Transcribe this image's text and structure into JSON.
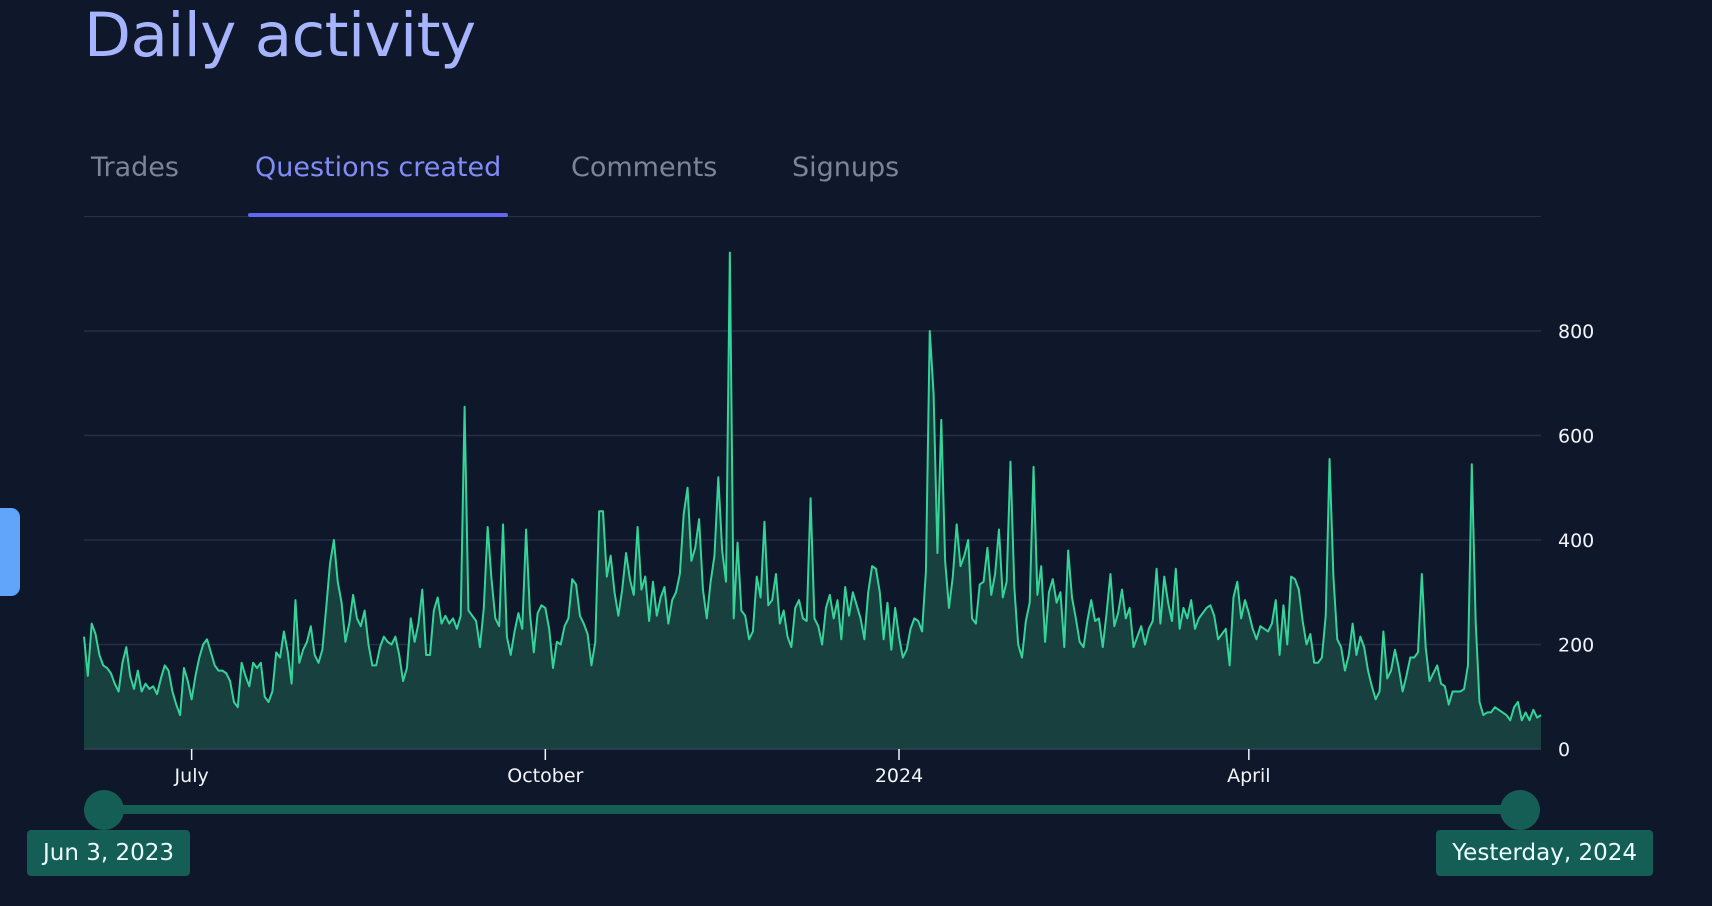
{
  "title": "Daily activity",
  "tabs": [
    {
      "label": "Trades",
      "active": false
    },
    {
      "label": "Questions created",
      "active": true
    },
    {
      "label": "Comments",
      "active": false
    },
    {
      "label": "Signups",
      "active": false
    }
  ],
  "colors": {
    "background": "#0f172a",
    "title": "#a5b4fc",
    "active_tab": "#818cf8",
    "line": "#34d399",
    "area": "#17403f",
    "range": "#155e56"
  },
  "range": {
    "start_label": "Jun 3, 2023",
    "end_label": "Yesterday, 2024",
    "start_fraction": 0,
    "end_fraction": 1
  },
  "chart_data": {
    "type": "area",
    "title": "",
    "xlabel": "",
    "ylabel": "",
    "ylim": [
      0,
      1000
    ],
    "y_ticks": [
      0,
      200,
      400,
      600,
      800
    ],
    "y_axis_position": "right",
    "x_ticks": [
      {
        "date": "2023-07-01",
        "label": "July"
      },
      {
        "date": "2023-10-01",
        "label": "October"
      },
      {
        "date": "2024-01-01",
        "label": "2024"
      },
      {
        "date": "2024-04-01",
        "label": "April"
      }
    ],
    "grid": true,
    "series": [
      {
        "x_start": "2023-06-03",
        "x_step_days": 1,
        "values": [
          215,
          140,
          240,
          220,
          180,
          160,
          155,
          145,
          125,
          110,
          165,
          195,
          140,
          115,
          150,
          110,
          125,
          115,
          120,
          105,
          135,
          160,
          150,
          110,
          85,
          65,
          155,
          130,
          95,
          140,
          175,
          200,
          210,
          185,
          160,
          150,
          150,
          145,
          130,
          90,
          80,
          165,
          140,
          120,
          165,
          155,
          165,
          100,
          90,
          110,
          185,
          175,
          225,
          185,
          125,
          285,
          165,
          190,
          205,
          235,
          180,
          165,
          190,
          270,
          355,
          400,
          320,
          280,
          205,
          240,
          295,
          250,
          235,
          265,
          200,
          160,
          160,
          195,
          215,
          205,
          200,
          215,
          180,
          130,
          155,
          250,
          205,
          240,
          305,
          180,
          180,
          265,
          290,
          240,
          255,
          240,
          250,
          230,
          255,
          655,
          265,
          255,
          245,
          195,
          270,
          425,
          325,
          250,
          235,
          430,
          215,
          180,
          225,
          260,
          230,
          420,
          260,
          185,
          260,
          275,
          270,
          230,
          155,
          205,
          200,
          235,
          250,
          325,
          315,
          255,
          240,
          220,
          160,
          205,
          455,
          455,
          330,
          370,
          300,
          255,
          305,
          375,
          325,
          295,
          425,
          305,
          330,
          245,
          320,
          255,
          290,
          310,
          240,
          285,
          300,
          335,
          450,
          500,
          360,
          385,
          440,
          305,
          250,
          320,
          370,
          520,
          380,
          320,
          950,
          250,
          395,
          265,
          255,
          210,
          225,
          330,
          290,
          435,
          275,
          285,
          335,
          240,
          265,
          215,
          195,
          270,
          285,
          250,
          245,
          480,
          250,
          235,
          200,
          270,
          295,
          250,
          285,
          210,
          310,
          255,
          300,
          275,
          250,
          210,
          300,
          350,
          345,
          300,
          210,
          280,
          190,
          270,
          215,
          175,
          190,
          230,
          250,
          245,
          225,
          340,
          800,
          680,
          375,
          630,
          360,
          270,
          330,
          430,
          350,
          370,
          400,
          250,
          240,
          315,
          320,
          385,
          295,
          335,
          420,
          290,
          320,
          550,
          310,
          200,
          175,
          245,
          280,
          540,
          295,
          350,
          205,
          300,
          325,
          280,
          300,
          195,
          380,
          290,
          250,
          205,
          195,
          245,
          285,
          245,
          250,
          195,
          260,
          335,
          235,
          260,
          305,
          250,
          270,
          195,
          215,
          235,
          200,
          230,
          245,
          345,
          240,
          330,
          280,
          245,
          345,
          230,
          270,
          250,
          285,
          230,
          250,
          260,
          270,
          275,
          255,
          210,
          220,
          230,
          160,
          290,
          320,
          250,
          285,
          260,
          230,
          210,
          235,
          230,
          225,
          240,
          285,
          180,
          275,
          200,
          330,
          325,
          305,
          245,
          200,
          220,
          165,
          165,
          175,
          255,
          555,
          330,
          210,
          195,
          150,
          180,
          240,
          180,
          215,
          195,
          150,
          120,
          95,
          110,
          225,
          135,
          150,
          190,
          155,
          110,
          140,
          175,
          175,
          185,
          335,
          195,
          130,
          145,
          160,
          125,
          120,
          85,
          110,
          110,
          110,
          115,
          160,
          545,
          245,
          90,
          65,
          70,
          70,
          80,
          75,
          70,
          65,
          55,
          80,
          90,
          55,
          70,
          55,
          75,
          60,
          65
        ]
      }
    ]
  }
}
